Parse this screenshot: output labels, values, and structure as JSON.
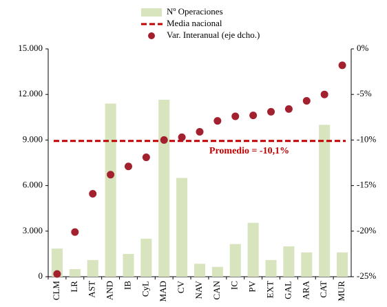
{
  "chart_data": {
    "type": "combo",
    "categories": [
      "CLM",
      "LR",
      "AST",
      "AND",
      "IB",
      "CyL",
      "MAD",
      "CV",
      "NAV",
      "CAN",
      "IC",
      "PV",
      "EXT",
      "GAL",
      "ARA",
      "CAT",
      "MUR"
    ],
    "series": [
      {
        "name": "Nº Operaciones",
        "type": "bar",
        "color": "#d7e4bd",
        "values": [
          1850,
          500,
          1100,
          11400,
          1500,
          2500,
          11650,
          6500,
          850,
          650,
          2150,
          3550,
          1100,
          2000,
          1600,
          10000,
          1600
        ]
      },
      {
        "name": "Media nacional",
        "type": "hline",
        "color": "#c00000",
        "axis": "y2",
        "value": -10.1
      },
      {
        "name": "Var. Interanual (eje dcho.)",
        "type": "scatter",
        "color": "#a3202f",
        "axis": "y2",
        "values": [
          -24.7,
          -20.1,
          -15.9,
          -13.8,
          -12.9,
          -11.9,
          -10.0,
          -9.7,
          -9.1,
          -7.9,
          -7.4,
          -7.3,
          -6.9,
          -6.6,
          -5.7,
          -5.0,
          -1.8
        ]
      }
    ],
    "annotation": "Promedio = -10,1%",
    "ylim": [
      0,
      15000
    ],
    "yticks": [
      0,
      {
        "value": 3000,
        "label": "3.000"
      },
      {
        "value": 6000,
        "label": "6.000"
      },
      {
        "value": 9000,
        "label": "9.000"
      },
      {
        "value": 12000,
        "label": "12.000"
      },
      {
        "value": 15000,
        "label": "15.000"
      }
    ],
    "y2lim": [
      -25,
      0
    ],
    "y2ticks": [
      {
        "value": -25,
        "label": "-25%"
      },
      {
        "value": -20,
        "label": "-20%"
      },
      {
        "value": -15,
        "label": "-15%"
      },
      {
        "value": -10,
        "label": "-10%"
      },
      {
        "value": -5,
        "label": "-5%"
      },
      {
        "value": 0,
        "label": "0%"
      }
    ]
  }
}
